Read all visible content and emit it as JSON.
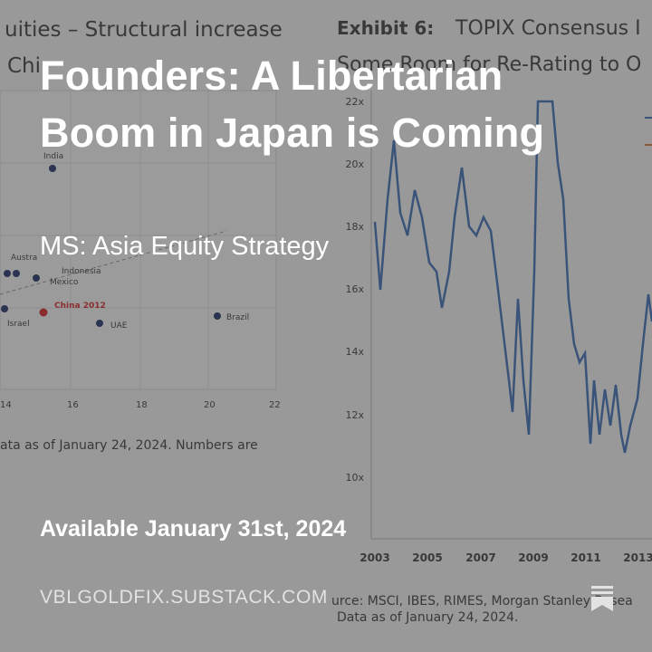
{
  "background": {
    "left_panel": {
      "title_lines": [
        "uities – Structural increase",
        "Chi"
      ],
      "labels": [
        "India",
        "Austra",
        "Indonesia",
        "Mexico",
        "China 2012",
        "Israel",
        "UAE",
        "Brazil"
      ],
      "x_ticks": [
        "14",
        "16",
        "18",
        "20",
        "22"
      ],
      "note": "ata as of January 24, 2024. Numbers are"
    },
    "right_panel": {
      "exhibit": "Exhibit 6:",
      "title_lines": [
        "TOPIX Consensus I",
        "Some Room for Re-Rating to O"
      ],
      "y_ticks": [
        "22x",
        "20x",
        "18x",
        "16x",
        "14x",
        "12x",
        "10x"
      ],
      "x_ticks": [
        "2003",
        "2005",
        "2007",
        "2009",
        "2011",
        "2013"
      ],
      "source_lines": [
        "urce: MSCI, IBES, RIMES, Morgan Stanley Resea",
        "Data as of January 24, 2024."
      ]
    }
  },
  "title": "Founders: A Libertarian Boom in Japan is Coming",
  "subtitle": "MS: Asia Equity Strategy",
  "date": "Available January 31st, 2024",
  "site": "VBLGOLDFIX.SUBSTACK.COM"
}
